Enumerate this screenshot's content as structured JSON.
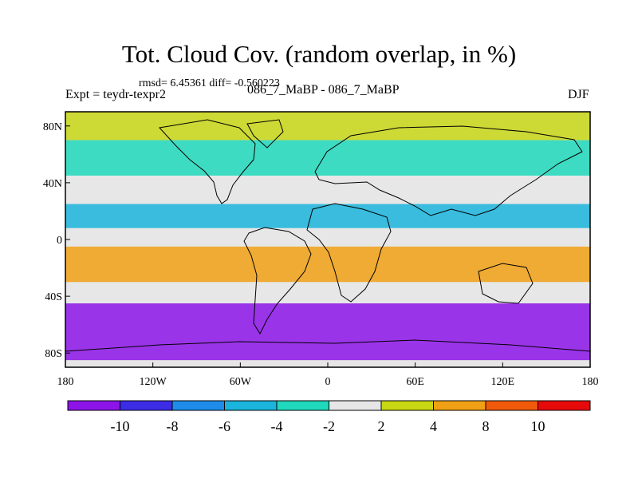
{
  "title": "Tot. Cloud Cov. (random overlap, in %)",
  "stats_text": "rmsd= 6.45361 diff= -0.560223",
  "experiment_text": "Expt = teydr-texpr2",
  "subtitle": "086_7_MaBP - 086_7_MaBP",
  "season": "DJF",
  "chart_data": {
    "type": "heatmap",
    "title": "Tot. Cloud Cov. (random overlap, in %)",
    "variable": "total cloud cover difference",
    "units": "%",
    "projection": "cylindrical equidistant",
    "xlim": [
      -180,
      180
    ],
    "ylim": [
      -90,
      90
    ],
    "x_ticks": [
      {
        "value": -180,
        "label": "180"
      },
      {
        "value": -120,
        "label": "120W"
      },
      {
        "value": -60,
        "label": "60W"
      },
      {
        "value": 0,
        "label": "0"
      },
      {
        "value": 60,
        "label": "60E"
      },
      {
        "value": 120,
        "label": "120E"
      },
      {
        "value": 180,
        "label": "180"
      }
    ],
    "y_ticks": [
      {
        "value": 80,
        "label": "80N"
      },
      {
        "value": 40,
        "label": "40N"
      },
      {
        "value": 0,
        "label": "0"
      },
      {
        "value": -40,
        "label": "40S"
      },
      {
        "value": -80,
        "label": "80S"
      }
    ],
    "contour_levels": [
      -10,
      -8,
      -6,
      -4,
      -2,
      2,
      4,
      8,
      10
    ],
    "colorbar_labels": [
      "-10",
      "-8",
      "-6",
      "-4",
      "-2",
      "2",
      "4",
      "8",
      "10"
    ],
    "colorbar_colors": [
      "#8c14e8",
      "#3c2ce6",
      "#1e8ce8",
      "#1ab4dc",
      "#20d8bc",
      "#e6e6e6",
      "#c8d614",
      "#f0a014",
      "#f05a0a",
      "#e60a0a"
    ],
    "zonal_bands": [
      {
        "lat_range": [
          70,
          90
        ],
        "value": 3
      },
      {
        "lat_range": [
          45,
          70
        ],
        "value": -3
      },
      {
        "lat_range": [
          25,
          45
        ],
        "value": 0
      },
      {
        "lat_range": [
          8,
          25
        ],
        "value": -5
      },
      {
        "lat_range": [
          -5,
          8
        ],
        "value": 0
      },
      {
        "lat_range": [
          -30,
          -5
        ],
        "value": 7
      },
      {
        "lat_range": [
          -45,
          -30
        ],
        "value": 0
      },
      {
        "lat_range": [
          -85,
          -45
        ],
        "value": -11
      }
    ],
    "colorbar_orientation": "horizontal",
    "colorbar_position": "bottom",
    "grid": false
  }
}
